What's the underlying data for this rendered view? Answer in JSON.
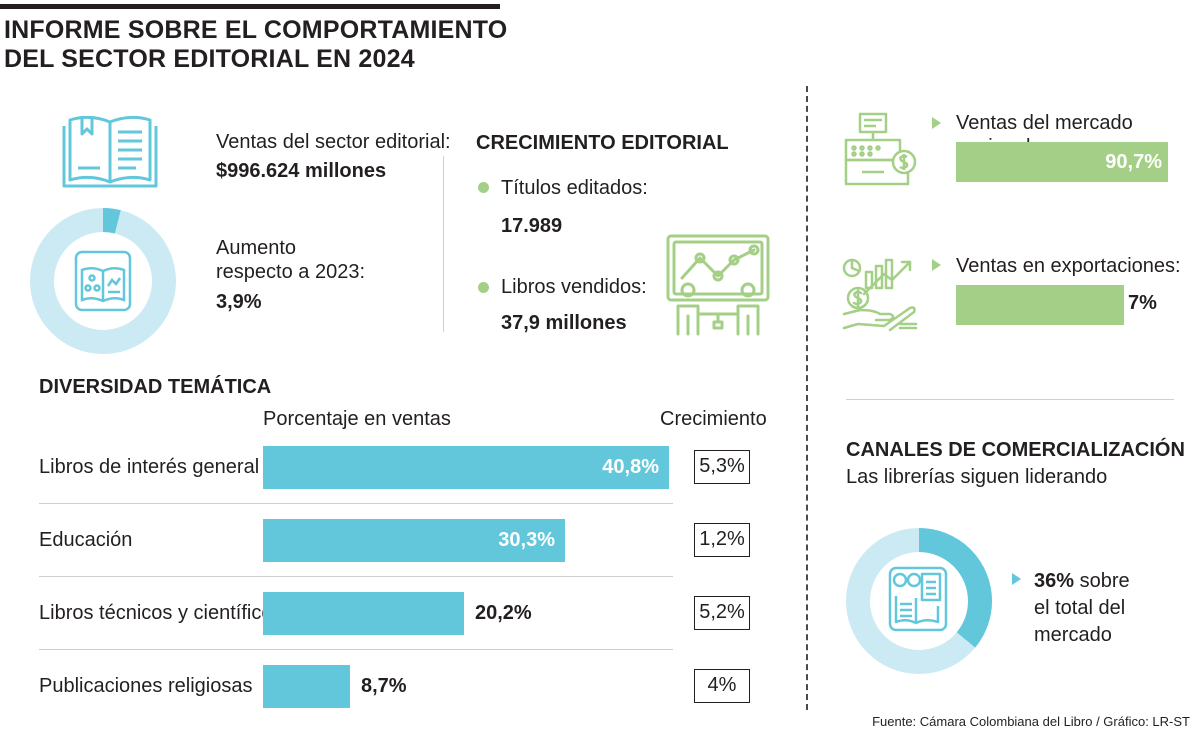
{
  "header": {
    "title_line1": "INFORME SOBRE EL COMPORTAMIENTO",
    "title_line2": "DEL SECTOR EDITORIAL EN 2024"
  },
  "sales": {
    "label": "Ventas del sector editorial:",
    "value": "$996.624 millones"
  },
  "increase": {
    "label_line1": "Aumento",
    "label_line2": "respecto a 2023:",
    "value": "3,9%",
    "percent": 3.9
  },
  "growth": {
    "heading": "CRECIMIENTO EDITORIAL",
    "titles_label": "Títulos editados:",
    "titles_value": "17.989",
    "books_label": "Libros vendidos:",
    "books_value": "37,9 millones"
  },
  "markets": [
    {
      "label": "Ventas del mercado nacional:",
      "value": "90,7%",
      "percent": 90.7
    },
    {
      "label": "Ventas en exportaciones:",
      "value": "7%",
      "percent": 7
    }
  ],
  "channels": {
    "heading": "CANALES DE COMERCIALIZACIÓN",
    "subtitle": "Las librerías siguen liderando",
    "value": "36%",
    "text_line1": " sobre",
    "text_line2": "el total del",
    "text_line3": "mercado",
    "percent": 36
  },
  "chart_data": {
    "type": "bar",
    "title": "DIVERSIDAD TEMÁTICA",
    "value_header": "Porcentaje en ventas",
    "growth_header": "Crecimiento",
    "categories": [
      "Libros de interés general",
      "Educación",
      "Libros técnicos y científicos",
      "Publicaciones religiosas"
    ],
    "values": [
      40.8,
      30.3,
      20.2,
      8.7
    ],
    "value_labels": [
      "40,8%",
      "30,3%",
      "20,2%",
      "8,7%"
    ],
    "growth_labels": [
      "5,3%",
      "1,2%",
      "5,2%",
      "4%"
    ],
    "xlim": [
      0,
      40.8
    ]
  },
  "colors": {
    "blue": "#63c7dc",
    "light_blue": "#cbeaf3",
    "green": "#a4cf86",
    "text": "#231f20"
  },
  "source": "Fuente: Cámara Colombiana del Libro / Gráfico: LR-ST"
}
